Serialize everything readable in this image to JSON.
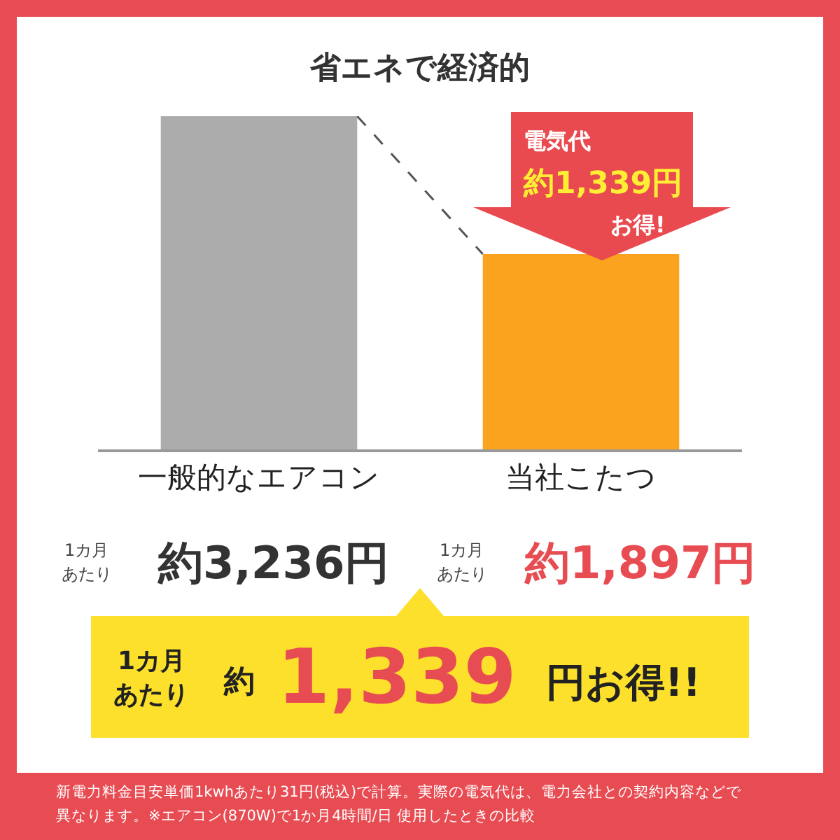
{
  "chart_data": {
    "type": "bar",
    "title": "省エネで経済的",
    "categories": [
      "一般的なエアコン",
      "当社こたつ"
    ],
    "values": [
      3236,
      1897
    ],
    "colors": [
      "#acacac",
      "#fba21e"
    ],
    "value_labels": [
      "約3,236円",
      "約1,897円"
    ],
    "legend": false,
    "tick_labels": "x",
    "annotations": [
      "1カ月",
      "あたり",
      "1カ月",
      "あたり",
      "電気代",
      "約1,339円",
      "お得!",
      "1カ月",
      "あたり",
      "約",
      "1,339",
      "円お得!!",
      "新電力料金目安単価1kwhあたり31円(税込)で計算。実際の電気代は、電力会社との契約内容などで",
      "異なります。※エアコン(870W)で1か月4時間/日 使用したときの比較"
    ]
  }
}
